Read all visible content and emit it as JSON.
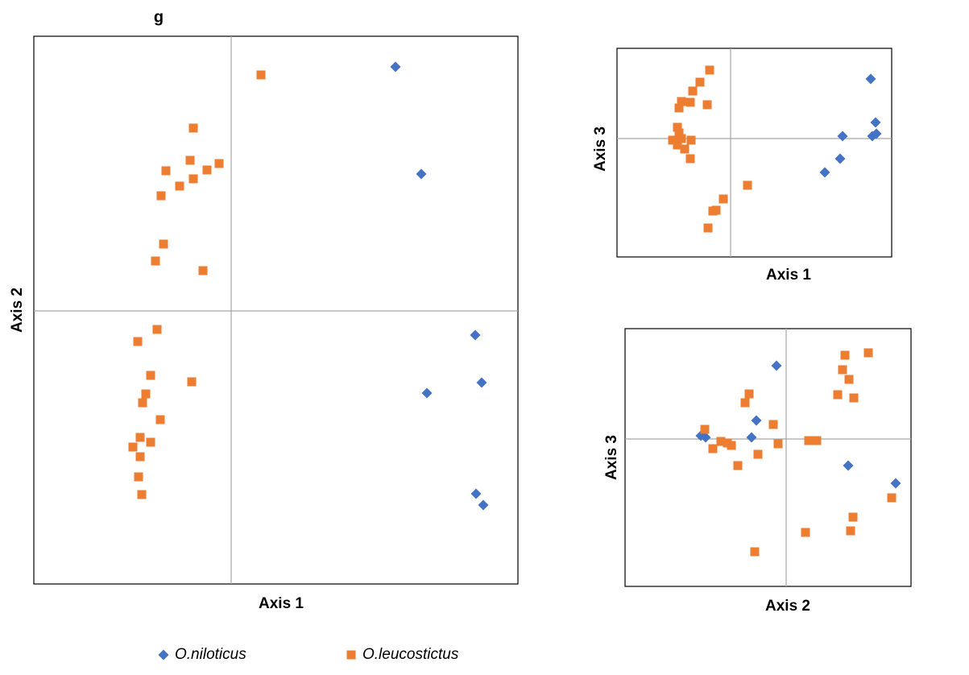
{
  "chart_data": [
    {
      "type": "scatter",
      "title": "g",
      "x_label": "Axis 1",
      "y_label": "Axis 2",
      "xlim": [
        -2.45,
        3.56
      ],
      "ylim": [
        -3.39,
        3.41
      ],
      "legend": "bottom",
      "series": [
        {
          "name": "O.niloticus",
          "color": "#4472c4",
          "marker": "diamond",
          "x": [
            2.04,
            2.36,
            3.03,
            3.11,
            2.43,
            3.04,
            3.13
          ],
          "values": [
            3.03,
            1.7,
            -0.3,
            -0.89,
            -1.02,
            -2.27,
            -2.41
          ]
        },
        {
          "name": "O.leucostictus",
          "color": "#ed7d31",
          "marker": "square",
          "x": [
            0.37,
            -0.47,
            -0.51,
            -0.15,
            -0.3,
            -0.81,
            -0.47,
            -0.64,
            -0.87,
            -0.84,
            -0.94,
            -0.35,
            -0.92,
            -1.16,
            -1.0,
            -0.49,
            -1.06,
            -1.1,
            -0.88,
            -1.13,
            -1.0,
            -1.22,
            -1.13,
            -1.15,
            -1.11
          ],
          "values": [
            2.93,
            2.27,
            1.87,
            1.83,
            1.75,
            1.74,
            1.64,
            1.55,
            1.43,
            0.83,
            0.62,
            0.5,
            -0.23,
            -0.38,
            -0.8,
            -0.88,
            -1.03,
            -1.14,
            -1.35,
            -1.57,
            -1.63,
            -1.69,
            -1.81,
            -2.06,
            -2.28
          ]
        }
      ]
    },
    {
      "type": "scatter",
      "x_label": "Axis 1",
      "y_label": "Axis 3",
      "xlim": [
        -2.82,
        4.0
      ],
      "ylim": [
        -2.94,
        2.24
      ],
      "series": [
        {
          "color": "#4472c4",
          "marker": "diamond",
          "x": [
            3.48,
            3.6,
            2.78,
            3.52,
            3.62,
            2.72,
            2.34
          ],
          "values": [
            1.48,
            0.4,
            0.06,
            0.06,
            0.12,
            -0.5,
            -0.84
          ]
        },
        {
          "color": "#ed7d31",
          "marker": "square",
          "x": [
            -0.52,
            -0.76,
            -0.94,
            -1.22,
            -1.0,
            -0.58,
            -1.28,
            -1.32,
            -1.28,
            -1.44,
            -1.22,
            -0.98,
            -1.32,
            -1.14,
            -1.0,
            0.42,
            -0.18,
            -0.36,
            -0.44,
            -0.56
          ],
          "values": [
            1.7,
            1.4,
            1.18,
            0.92,
            0.9,
            0.84,
            0.76,
            0.28,
            0.14,
            -0.04,
            0,
            -0.04,
            -0.16,
            -0.26,
            -0.5,
            -1.16,
            -1.5,
            -1.78,
            -1.8,
            -2.22
          ]
        }
      ]
    },
    {
      "type": "scatter",
      "x_label": "Axis 2",
      "y_label": "Axis 3",
      "xlim": [
        -4.0,
        3.1
      ],
      "ylim": [
        -3.66,
        2.74
      ],
      "series": [
        {
          "color": "#4472c4",
          "marker": "diamond",
          "x": [
            -0.24,
            -0.74,
            -2.12,
            -2.0,
            -0.86,
            1.54,
            2.72
          ],
          "values": [
            1.82,
            0.46,
            0.08,
            0.04,
            0.04,
            -0.66,
            -1.1
          ]
        },
        {
          "color": "#ed7d31",
          "marker": "square",
          "x": [
            1.46,
            2.04,
            1.4,
            1.56,
            1.28,
            1.68,
            -0.92,
            -1.02,
            -0.32,
            -2.02,
            -1.62,
            -1.46,
            -1.36,
            0.56,
            0.76,
            -0.2,
            -1.82,
            -0.7,
            -1.2,
            2.62,
            1.66,
            1.6,
            0.48,
            -0.78
          ],
          "values": [
            2.08,
            2.14,
            1.72,
            1.48,
            1.1,
            1.02,
            1.12,
            0.9,
            0.36,
            0.24,
            -0.06,
            -0.1,
            -0.16,
            -0.04,
            -0.04,
            -0.12,
            -0.24,
            -0.38,
            -0.66,
            -1.46,
            -1.94,
            -2.28,
            -2.32,
            -2.8
          ]
        }
      ]
    }
  ]
}
